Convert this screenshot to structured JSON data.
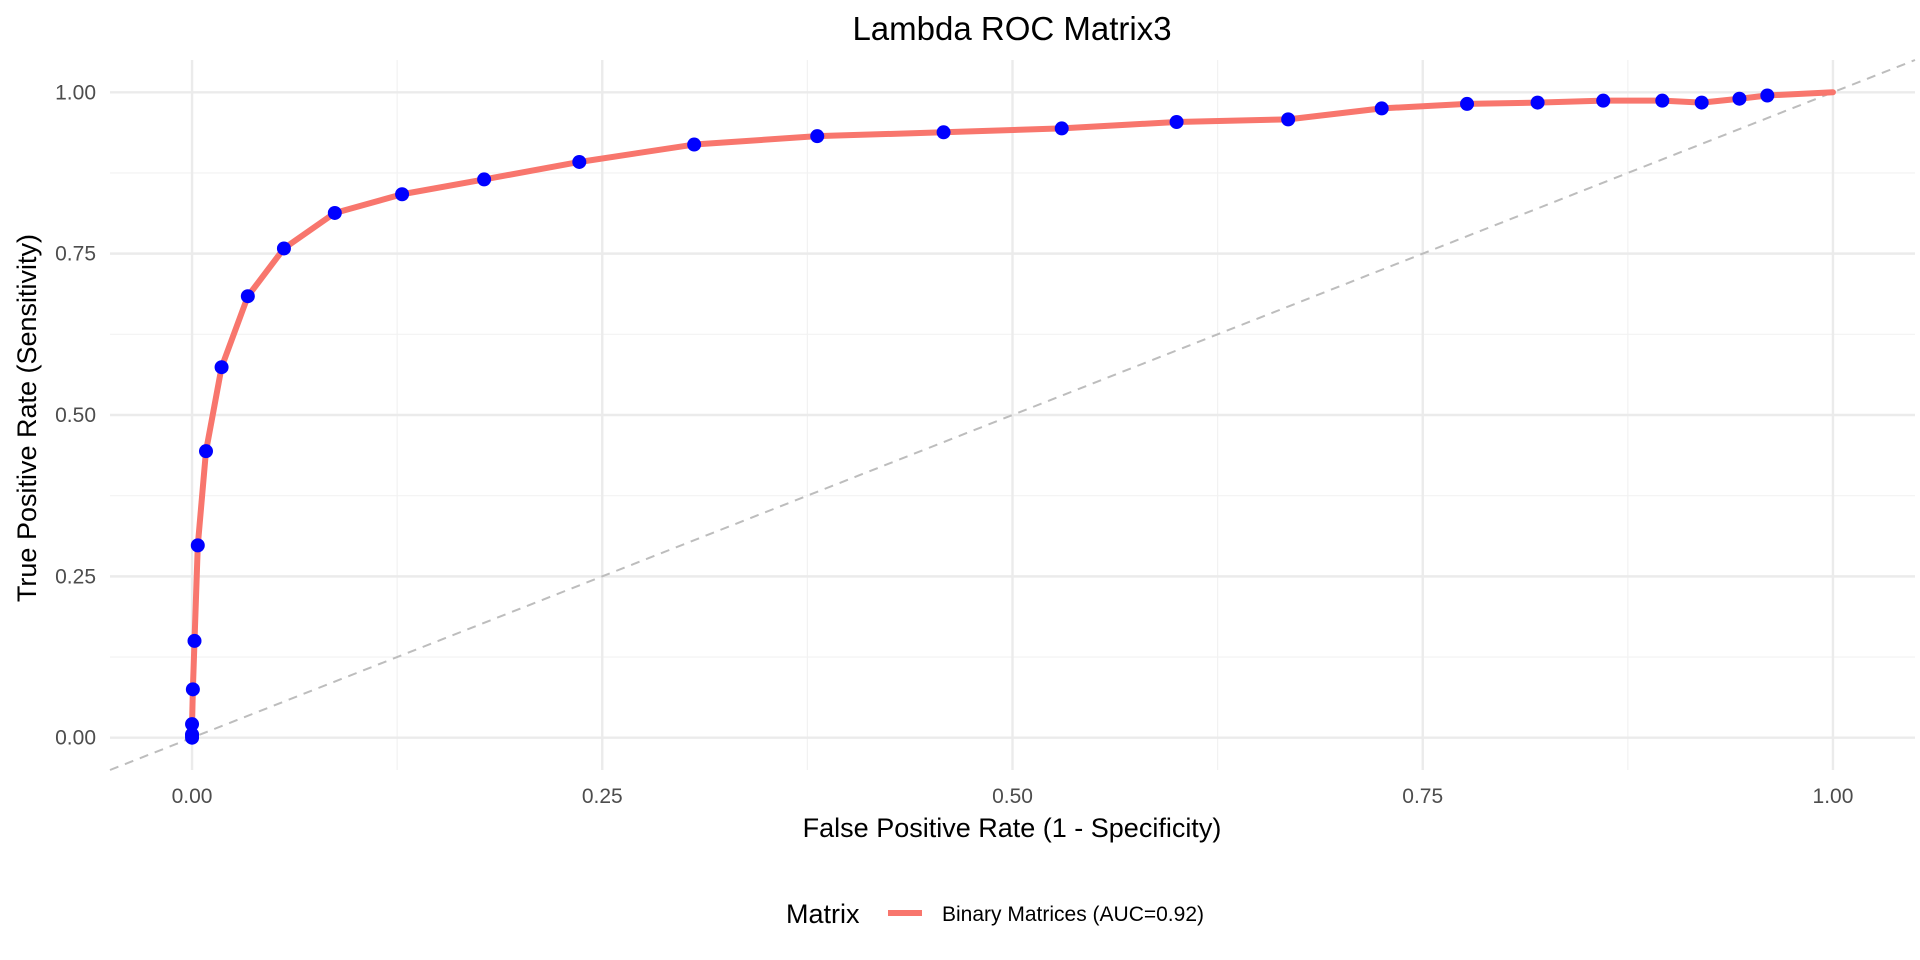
{
  "chart_data": {
    "type": "line",
    "title": "Lambda ROC Matrix3",
    "xlabel": "False Positive Rate (1 - Specificity)",
    "ylabel": "True Positive Rate (Sensitivity)",
    "xlim": [
      -0.05,
      1.05
    ],
    "ylim": [
      -0.05,
      1.05
    ],
    "x_ticks": [
      0.0,
      0.25,
      0.5,
      0.75,
      1.0
    ],
    "y_ticks": [
      0.0,
      0.25,
      0.5,
      0.75,
      1.0
    ],
    "x_tick_labels": [
      "0.00",
      "0.25",
      "0.50",
      "0.75",
      "1.00"
    ],
    "y_tick_labels": [
      "0.00",
      "0.25",
      "0.50",
      "0.75",
      "1.00"
    ],
    "grid": true,
    "legend": {
      "title": "Matrix",
      "placement": "bottom",
      "entries": [
        "Binary Matrices (AUC=0.92)"
      ]
    },
    "reference_line": {
      "style": "dashed",
      "color": "#bdbdbd",
      "x": [
        -0.05,
        1.05
      ],
      "y": [
        -0.05,
        1.05
      ]
    },
    "series": [
      {
        "name": "Binary Matrices (AUC=0.92)",
        "line_color": "#f8766d",
        "point_color": "#0000ff",
        "x": [
          0.0,
          0.0,
          0.0,
          0.0,
          0.0005,
          0.0015,
          0.0035,
          0.0085,
          0.018,
          0.034,
          0.056,
          0.087,
          0.128,
          0.178,
          0.236,
          0.306,
          0.381,
          0.458,
          0.53,
          0.6,
          0.668,
          0.725,
          0.777,
          0.82,
          0.86,
          0.896,
          0.92,
          0.943,
          0.96,
          1.0
        ],
        "y": [
          0.0,
          0.004,
          0.005,
          0.021,
          0.075,
          0.15,
          0.298,
          0.444,
          0.574,
          0.684,
          0.758,
          0.813,
          0.842,
          0.865,
          0.892,
          0.919,
          0.932,
          0.938,
          0.944,
          0.954,
          0.958,
          0.975,
          0.982,
          0.984,
          0.987,
          0.987,
          0.984,
          0.99,
          0.995,
          1.0
        ],
        "markers": [
          true,
          true,
          true,
          true,
          true,
          true,
          true,
          true,
          true,
          true,
          true,
          true,
          true,
          true,
          true,
          true,
          true,
          true,
          true,
          true,
          true,
          true,
          true,
          true,
          true,
          true,
          true,
          true,
          true,
          false
        ]
      }
    ]
  }
}
